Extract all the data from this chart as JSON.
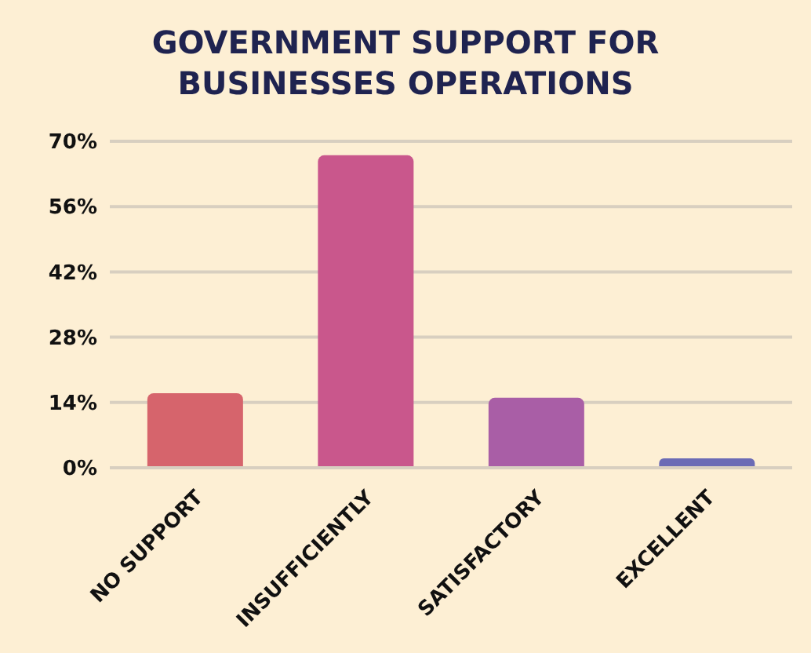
{
  "chart_data": {
    "type": "bar",
    "title": "GOVERNMENT SUPPORT FOR BUSINESSES OPERATIONS",
    "categories": [
      "NO SUPPORT",
      "INSUFFICIENTLY",
      "SATISFACTORY",
      "EXCELLENT"
    ],
    "values": [
      16,
      67,
      15,
      2
    ],
    "colors": [
      "#d6646c",
      "#c9578c",
      "#a95ea6",
      "#6b6bb5"
    ],
    "ylim": [
      0,
      70
    ],
    "yticks": [
      {
        "value": 0,
        "label": "0%"
      },
      {
        "value": 14,
        "label": "14%"
      },
      {
        "value": 28,
        "label": "28%"
      },
      {
        "value": 42,
        "label": "42%"
      },
      {
        "value": 56,
        "label": "56%"
      },
      {
        "value": 70,
        "label": "70%"
      }
    ],
    "grid": "y"
  }
}
